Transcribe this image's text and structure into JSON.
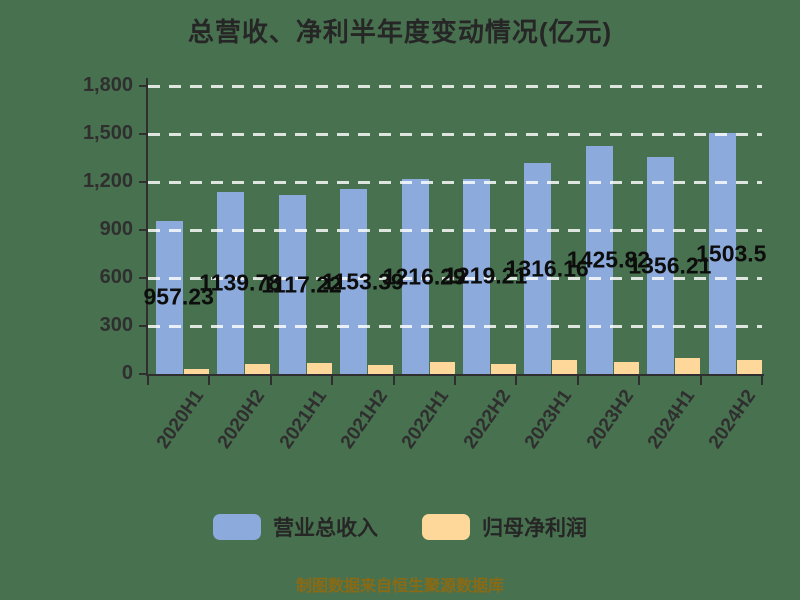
{
  "title": "总营收、净利半年度变动情况(亿元)",
  "footer": "制图数据来自恒生聚源数据库",
  "colors": {
    "background": "#48714F",
    "revenue_bar": "#8CAADC",
    "profit_bar": "#FDD89A",
    "axis": "#2F2F2F",
    "gridline": "rgba(255,255,255,0.82)",
    "title_text": "#262626",
    "axis_text": "#2F2F2F",
    "data_label_text": "#0D0D0D",
    "legend_text": "#262626",
    "footer_text": "#8A6A14"
  },
  "legend": {
    "items": [
      {
        "label": "营业总收入",
        "color": "#8CAADC"
      },
      {
        "label": "归母净利润",
        "color": "#FDD89A"
      }
    ]
  },
  "chart_data": {
    "type": "bar",
    "title": "总营收、净利半年度变动情况(亿元)",
    "unit": "亿元",
    "categories": [
      "2020H1",
      "2020H2",
      "2021H1",
      "2021H2",
      "2022H1",
      "2022H2",
      "2023H1",
      "2023H2",
      "2024H1",
      "2024H2"
    ],
    "series": [
      {
        "name": "营业总收入",
        "color": "#8CAADC",
        "values": [
          957.23,
          1139.78,
          1117.22,
          1153.39,
          1216.29,
          1219.21,
          1316.16,
          1425.82,
          1356.21,
          1503.5
        ],
        "data_labels": [
          "957.23",
          "1139.78",
          "1117.22",
          "1153.39",
          "1216.29",
          "1219.21",
          "1316.16",
          "1425.82",
          "1356.21",
          "1503.5"
        ]
      },
      {
        "name": "归母净利润",
        "color": "#FDD89A",
        "values": [
          30,
          62,
          69,
          57,
          76,
          61,
          88,
          78,
          100,
          88
        ],
        "data_labels": []
      }
    ],
    "ylim": [
      0,
      1800
    ],
    "yticks": {
      "values": [
        0,
        300,
        600,
        900,
        1200,
        1500,
        1800
      ],
      "labels": [
        "0",
        "300",
        "600",
        "900",
        "1,200",
        "1,500",
        "1,800"
      ]
    },
    "grid": "dashed horizontal, drawn over bars",
    "legend_position": "bottom",
    "xlabel": "",
    "ylabel": ""
  }
}
